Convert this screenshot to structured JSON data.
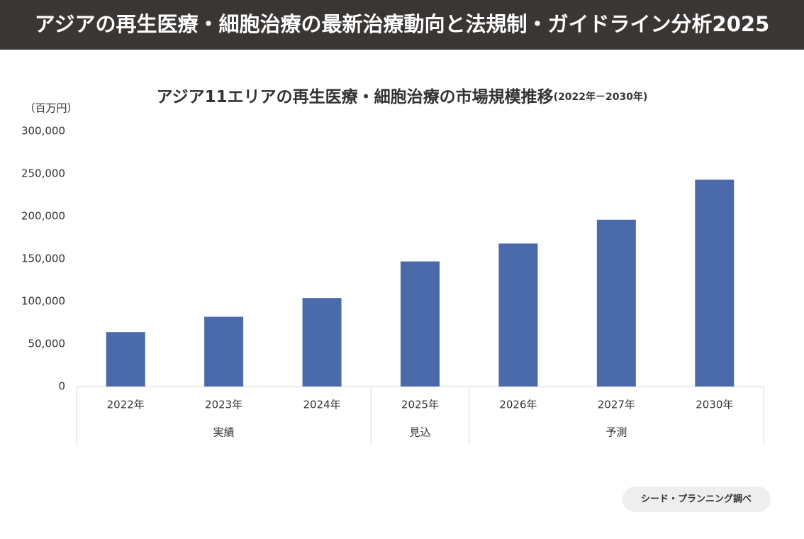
{
  "header": {
    "title": "アジアの再生医療・細胞治療の最新治療動向と法規制・ガイドライン分析2025"
  },
  "chart_data": {
    "type": "bar",
    "title": "アジア11エリアの再生医療・細胞治療の市場規模推移",
    "subtitle": "(2022年－2030年)",
    "y_label": "（百万円）",
    "groups": [
      {
        "name": "実績",
        "categories": [
          "2022年",
          "2023年",
          "2024年"
        ]
      },
      {
        "name": "見込",
        "categories": [
          "2025年"
        ]
      },
      {
        "name": "予測",
        "categories": [
          "2026年",
          "2027年",
          "2030年"
        ]
      }
    ],
    "values": [
      64000,
      82000,
      104000,
      147000,
      168000,
      196000,
      243000
    ],
    "color": "#4a6aaa",
    "ylim": [
      0,
      300000
    ],
    "yticks": [
      0,
      {
        "value": 50000,
        "label": "50,000"
      },
      {
        "value": 100000,
        "label": "100,000"
      },
      {
        "value": 150000,
        "label": "150,000"
      },
      {
        "value": 200000,
        "label": "200,000"
      },
      {
        "value": 250000,
        "label": "250,000"
      },
      {
        "value": 300000,
        "label": "300,000"
      }
    ],
    "grid": false
  },
  "footer": {
    "source": "シード・プランニング調べ"
  }
}
